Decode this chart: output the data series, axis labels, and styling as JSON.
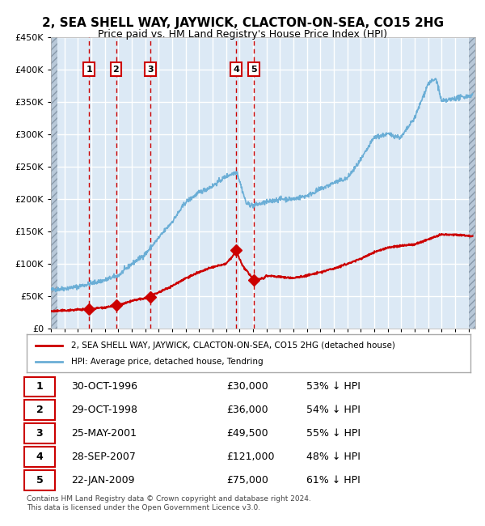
{
  "title": "2, SEA SHELL WAY, JAYWICK, CLACTON-ON-SEA, CO15 2HG",
  "subtitle": "Price paid vs. HM Land Registry's House Price Index (HPI)",
  "sale_dates": [
    1996.83,
    1998.83,
    2001.4,
    2007.74,
    2009.06
  ],
  "sale_prices": [
    30000,
    36000,
    49500,
    121000,
    75000
  ],
  "sale_labels": [
    "1",
    "2",
    "3",
    "4",
    "5"
  ],
  "sale_table": [
    [
      "1",
      "30-OCT-1996",
      "£30,000",
      "53% ↓ HPI"
    ],
    [
      "2",
      "29-OCT-1998",
      "£36,000",
      "54% ↓ HPI"
    ],
    [
      "3",
      "25-MAY-2001",
      "£49,500",
      "55% ↓ HPI"
    ],
    [
      "4",
      "28-SEP-2007",
      "£121,000",
      "48% ↓ HPI"
    ],
    [
      "5",
      "22-JAN-2009",
      "£75,000",
      "61% ↓ HPI"
    ]
  ],
  "legend_line1": "2, SEA SHELL WAY, JAYWICK, CLACTON-ON-SEA, CO15 2HG (detached house)",
  "legend_line2": "HPI: Average price, detached house, Tendring",
  "footer": "Contains HM Land Registry data © Crown copyright and database right 2024.\nThis data is licensed under the Open Government Licence v3.0.",
  "hpi_color": "#6baed6",
  "sale_color": "#cc0000",
  "bg_color": "#dce9f5",
  "grid_color": "#ffffff",
  "ylim": [
    0,
    450000
  ],
  "xlim": [
    1994.0,
    2025.5
  ],
  "hpi_key_years": [
    1994.0,
    1995.0,
    1996.0,
    1997.0,
    1998.0,
    1999.0,
    2000.0,
    2001.0,
    2002.0,
    2003.0,
    2004.0,
    2005.0,
    2006.0,
    2007.0,
    2007.8,
    2008.5,
    2009.0,
    2010.0,
    2011.0,
    2012.0,
    2013.0,
    2014.0,
    2015.0,
    2016.0,
    2017.0,
    2018.0,
    2019.0,
    2020.0,
    2021.0,
    2022.0,
    2022.6,
    2023.0,
    2024.0,
    2025.3
  ],
  "hpi_key_vals": [
    60000,
    62000,
    65000,
    70000,
    75000,
    82000,
    100000,
    115000,
    140000,
    165000,
    195000,
    210000,
    220000,
    235000,
    242000,
    193000,
    190000,
    195000,
    200000,
    200000,
    205000,
    215000,
    225000,
    232000,
    260000,
    295000,
    300000,
    295000,
    325000,
    378000,
    385000,
    350000,
    355000,
    360000
  ],
  "sale_key_years": [
    1994.0,
    1995.0,
    1996.0,
    1996.83,
    1997.5,
    1998.0,
    1998.83,
    1999.5,
    2000.0,
    2001.0,
    2001.4,
    2002.0,
    2003.0,
    2004.0,
    2005.0,
    2006.0,
    2007.0,
    2007.5,
    2007.74,
    2008.2,
    2009.06,
    2009.8,
    2010.0,
    2011.0,
    2012.0,
    2013.0,
    2014.0,
    2015.0,
    2016.0,
    2017.0,
    2018.0,
    2019.0,
    2020.0,
    2021.0,
    2022.0,
    2023.0,
    2024.0,
    2025.3
  ],
  "sale_key_vals": [
    27000,
    28000,
    29500,
    30000,
    32000,
    33000,
    36000,
    39000,
    43000,
    47000,
    49500,
    56000,
    66000,
    78000,
    87000,
    95000,
    100000,
    112000,
    121000,
    98000,
    75000,
    78000,
    82000,
    80000,
    78000,
    82000,
    87000,
    93000,
    100000,
    108000,
    118000,
    125000,
    128000,
    130000,
    138000,
    145000,
    145000,
    143000
  ]
}
